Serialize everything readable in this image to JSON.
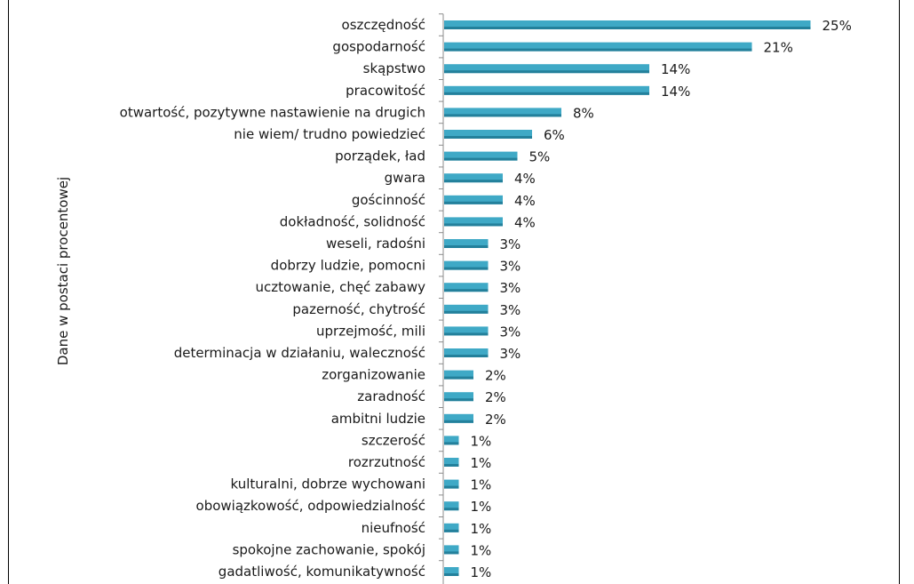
{
  "chart_data": {
    "type": "bar",
    "orientation": "horizontal",
    "ylabel": "Dane w postaci procentowej",
    "bar_color": "#3fa9c6",
    "categories": [
      "oszczędność",
      "gospodarność",
      "skąpstwo",
      "pracowitość",
      "otwartość, pozytywne nastawienie na drugich",
      "nie wiem/ trudno powiedzieć",
      "porządek, ład",
      "gwara",
      "gościnność",
      "dokładność, solidność",
      "weseli, radośni",
      "dobrzy ludzie, pomocni",
      "ucztowanie, chęć zabawy",
      "pazerność, chytrość",
      "uprzejmość, mili",
      "determinacja w działaniu, waleczność",
      "zorganizowanie",
      "zaradność",
      "ambitni ludzie",
      "szczerość",
      "rozrzutność",
      "kulturalni, dobrze wychowani",
      "obowiązkowość, odpowiedzialność",
      "nieufność",
      "spokojne zachowanie, spokój",
      "gadatliwość, komunikatywność"
    ],
    "values": [
      25,
      21,
      14,
      14,
      8,
      6,
      5,
      4,
      4,
      4,
      3,
      3,
      3,
      3,
      3,
      3,
      2,
      2,
      2,
      1,
      1,
      1,
      1,
      1,
      1,
      1
    ],
    "value_labels": [
      "25%",
      "21%",
      "14%",
      "14%",
      "8%",
      "6%",
      "5%",
      "4%",
      "4%",
      "4%",
      "3%",
      "3%",
      "3%",
      "3%",
      "3%",
      "3%",
      "2%",
      "2%",
      "2%",
      "1%",
      "1%",
      "1%",
      "1%",
      "1%",
      "1%",
      "1%"
    ]
  }
}
